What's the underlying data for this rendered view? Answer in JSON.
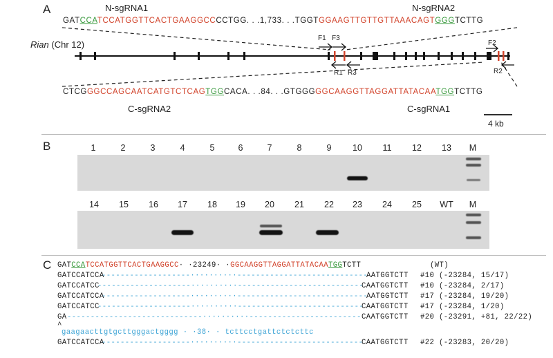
{
  "panelA": {
    "label": "A",
    "n_sgRNA1": "N-sgRNA1",
    "n_sgRNA2": "N-sgRNA2",
    "c_sgRNA2": "C-sgRNA2",
    "c_sgRNA1": "C-sgRNA1",
    "gene_name": "Rian",
    "gene_chr": "(Chr 12)",
    "top_seq": {
      "s1": "GAT",
      "s2": "CCA",
      "s3": "TCCATGGTTCACTGAAGGCC",
      "s4": "CCTGG. . .1,733. . .TGGT",
      "s5": "GGAAGTTGTTGTTAAACAGT",
      "s6": "GGG",
      "s7": "TCTTG"
    },
    "bot_seq": {
      "s1": "CTCG",
      "s2": "GGCCAGCAATCATGTCTCAG",
      "s3": "TGG",
      "s4": "CACA. . .84. . .GTGGG",
      "s5": "GGCAAGGTTAGGATTATACAA",
      "s6": "TGG",
      "s7": "TCTTG"
    },
    "primers": {
      "f1": "F1",
      "f3": "F3",
      "f2": "F2",
      "r1": "R1",
      "r3": "R3",
      "r2": "R2"
    },
    "scale": "4 kb"
  },
  "panelB": {
    "label": "B",
    "lanes_top": [
      "1",
      "2",
      "3",
      "4",
      "5",
      "6",
      "7",
      "8",
      "9",
      "10",
      "11",
      "12",
      "13",
      "M"
    ],
    "lanes_bottom": [
      "14",
      "15",
      "16",
      "17",
      "18",
      "19",
      "20",
      "21",
      "22",
      "23",
      "24",
      "25",
      "WT",
      "M"
    ]
  },
  "panelC": {
    "label": "C",
    "wt": {
      "a": "GAT",
      "b": "CCA",
      "c": "TCCATGGTTCACTGAAGGCC",
      "d": "· ·23249· ·",
      "e": "GGCAAGGTTAGGATTATACAA",
      "f": "TGG",
      "g": "TCTT",
      "tag": "(WT)"
    },
    "rows": [
      {
        "left": "GATCCATCCA",
        "right": "AATGGTCTT",
        "note": "#10 (-23284, 15/17)"
      },
      {
        "left": "GATCCATCC",
        "right": "CAATGGTCTT",
        "note": "#10 (-23284, 2/17)"
      },
      {
        "left": "GATCCATCCA",
        "right": "AATGGTCTT",
        "note": "#17 (-23284, 19/20)"
      },
      {
        "left": "GATCCATCC",
        "right": "CAATGGTCTT",
        "note": "#17 (-23284, 1/20)"
      },
      {
        "left": "GA",
        "right": "CAATGGTCTT",
        "note": "#20 (-23291, +81, 22/22)"
      },
      {
        "left": "GATCCATCCA",
        "right": "CAATGGTCTT",
        "note": "#22 (-23283, 20/20)"
      }
    ],
    "insert_caret": "^",
    "insert": "gaagaacttgtgcttgggactgggg · ·38· · tcttcctgattctctcttc"
  },
  "colors": {
    "red": "#d2442c",
    "green": "#3a9a3e",
    "blue": "#3fa5d6"
  }
}
